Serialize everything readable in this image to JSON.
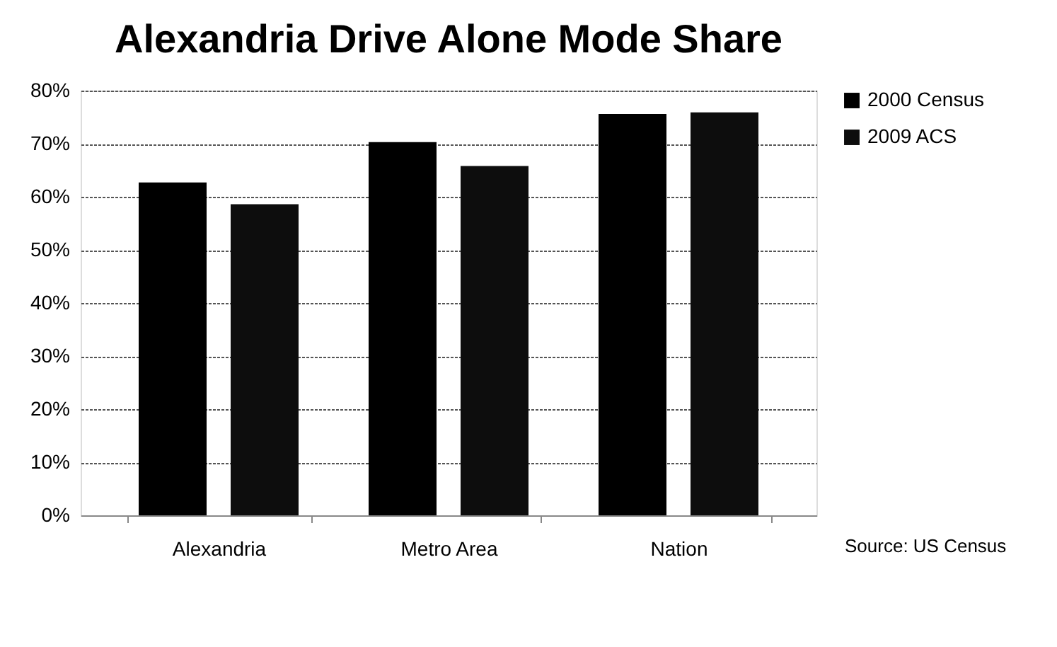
{
  "chart_data": {
    "type": "bar",
    "title": "Alexandria Drive Alone Mode Share",
    "categories": [
      "Alexandria",
      "Metro Area",
      "Nation"
    ],
    "series": [
      {
        "name": "2000 Census",
        "color": "#000000",
        "values": [
          62.7,
          70.3,
          75.6
        ]
      },
      {
        "name": "2009 ACS",
        "color": "#0d0d0d",
        "values": [
          58.6,
          65.8,
          75.9
        ]
      }
    ],
    "ylim": [
      0,
      80
    ],
    "yticks": [
      {
        "value": 0,
        "label": "0%"
      },
      {
        "value": 10,
        "label": "10%"
      },
      {
        "value": 20,
        "label": "20%"
      },
      {
        "value": 30,
        "label": "30%"
      },
      {
        "value": 40,
        "label": "40%"
      },
      {
        "value": 50,
        "label": "50%"
      },
      {
        "value": 60,
        "label": "60%"
      },
      {
        "value": 70,
        "label": "70%"
      },
      {
        "value": 80,
        "label": "80%"
      }
    ],
    "grid": "y",
    "legend": "right",
    "annotations": [
      "Source: US Census"
    ]
  }
}
